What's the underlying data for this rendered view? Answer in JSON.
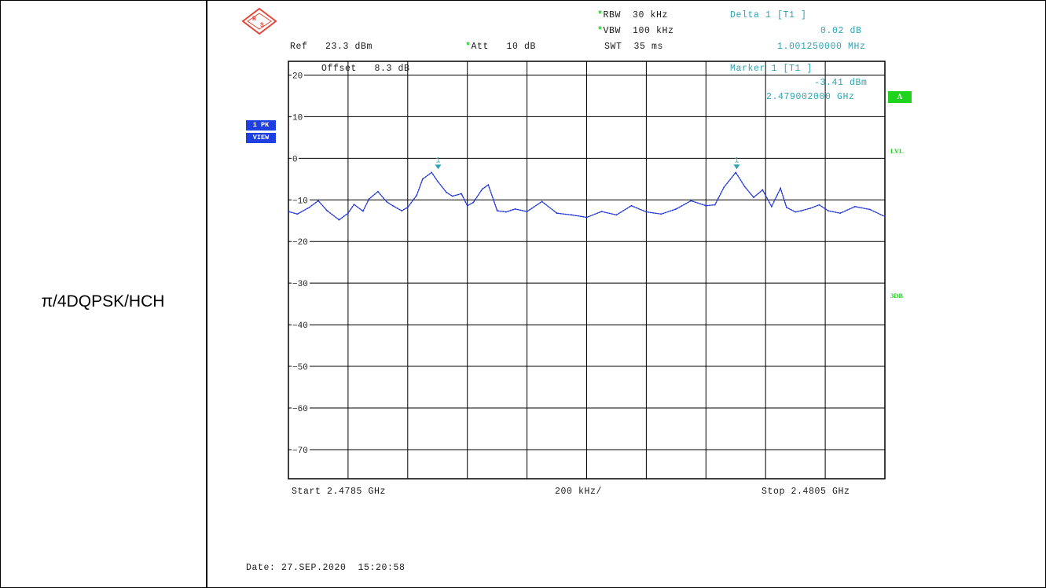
{
  "row_label": "π/4DQPSK/HCH",
  "header": {
    "rbw_label": "RBW",
    "rbw_value": "30 kHz",
    "vbw_label": "VBW",
    "vbw_value": "100 kHz",
    "ref_label": "Ref",
    "ref_value": "23.3 dBm",
    "att_label": "Att",
    "att_value": "10 dB",
    "swt_label": "SWT",
    "swt_value": "35 ms",
    "delta_title": "Delta 1 [T1 ]",
    "delta_level": "0.02 dB",
    "delta_freq": "1.001250000 MHz",
    "marker_title": "Marker 1 [T1 ]",
    "marker_level": "-3.41 dBm",
    "marker_freq": "2.479002000 GHz",
    "offset_label": "Offset",
    "offset_value": "8.3 dB",
    "star": "*"
  },
  "badges": {
    "trace": "1 PK",
    "view": "VIEW",
    "a": "A",
    "lvl": "LVL",
    "db3": "3DB"
  },
  "footer": {
    "start": "Start 2.4785 GHz",
    "span": "200 kHz/",
    "stop": "Stop 2.4805 GHz",
    "date": "Date: 27.SEP.2020  15:20:58"
  },
  "colors": {
    "trace": "#1f35d8",
    "marker": "#2fa3b3",
    "accent": "#1fd31f",
    "badge": "#1f3fe0"
  },
  "chart_data": {
    "type": "line",
    "xlabel": "",
    "ylabel": "",
    "x_unit": "GHz",
    "y_unit": "dBm",
    "xlim": [
      2.4785,
      2.4805
    ],
    "ylim": [
      -77,
      23.3
    ],
    "y_ticks": [
      20,
      10,
      0,
      -10,
      -20,
      -30,
      -40,
      -50,
      -60,
      -70
    ],
    "x_divisions": 10,
    "grid": true,
    "markers": [
      {
        "label": "1",
        "x": 2.479002,
        "y": -3.41
      },
      {
        "label": "1",
        "x": 2.480003,
        "y": -3.39
      }
    ],
    "series": [
      {
        "x": [
          2.4785,
          2.47853,
          2.47857,
          2.4786,
          2.47863,
          2.47867,
          2.4787,
          2.47872,
          2.47875,
          2.47877,
          2.4788,
          2.47883,
          2.47885,
          2.47888,
          2.4789,
          2.47893,
          2.47895,
          2.47898,
          2.479,
          2.47903,
          2.47905,
          2.47908,
          2.4791,
          2.47912,
          2.47915,
          2.47917,
          2.4792,
          2.47923,
          2.47926,
          2.4793,
          2.47935,
          2.4794,
          2.47945,
          2.4795,
          2.47955,
          2.4796,
          2.47965,
          2.4797,
          2.47975,
          2.4798,
          2.47985,
          2.4799,
          2.47993,
          2.47996,
          2.48,
          2.48003,
          2.48006,
          2.48009,
          2.48012,
          2.48015,
          2.48017,
          2.4802,
          2.48022,
          2.48025,
          2.48028,
          2.48031,
          2.48035,
          2.4804,
          2.48045,
          2.4805
        ],
        "y": [
          -12.8,
          -13.4,
          -11.8,
          -10.2,
          -12.6,
          -14.8,
          -13.2,
          -11.1,
          -12.7,
          -9.8,
          -8.0,
          -10.5,
          -11.4,
          -12.6,
          -11.8,
          -8.9,
          -5.0,
          -3.4,
          -5.5,
          -8.2,
          -9.1,
          -8.5,
          -11.4,
          -10.6,
          -7.4,
          -6.4,
          -12.6,
          -12.9,
          -12.2,
          -12.8,
          -10.4,
          -13.2,
          -13.6,
          -14.2,
          -12.8,
          -13.6,
          -11.4,
          -12.9,
          -13.4,
          -12.2,
          -10.2,
          -11.4,
          -11.2,
          -7.0,
          -3.4,
          -6.8,
          -9.4,
          -7.6,
          -11.6,
          -7.2,
          -11.8,
          -12.9,
          -12.6,
          -12.0,
          -11.2,
          -12.6,
          -13.2,
          -11.6,
          -12.3,
          -14.0
        ]
      }
    ]
  }
}
